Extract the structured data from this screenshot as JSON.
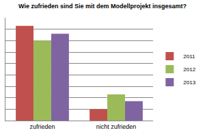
{
  "chart_data": {
    "type": "bar",
    "title": "Wie zufrieden sind Sie mit dem Modellprojekt insgesamt?",
    "categories": [
      "zufrieden",
      "nicht zufrieden"
    ],
    "series": [
      {
        "name": "2011",
        "color": "#c0504d",
        "values": [
          83,
          10
        ]
      },
      {
        "name": "2012",
        "color": "#9bbb59",
        "values": [
          70,
          23
        ]
      },
      {
        "name": "2013",
        "color": "#8064a2",
        "values": [
          76,
          17
        ]
      }
    ],
    "ylim": [
      0,
      90
    ],
    "yticks": [
      0,
      10,
      20,
      30,
      40,
      50,
      60,
      70,
      80,
      90
    ],
    "grid": true,
    "legend": "right",
    "tick_labels": "x"
  }
}
